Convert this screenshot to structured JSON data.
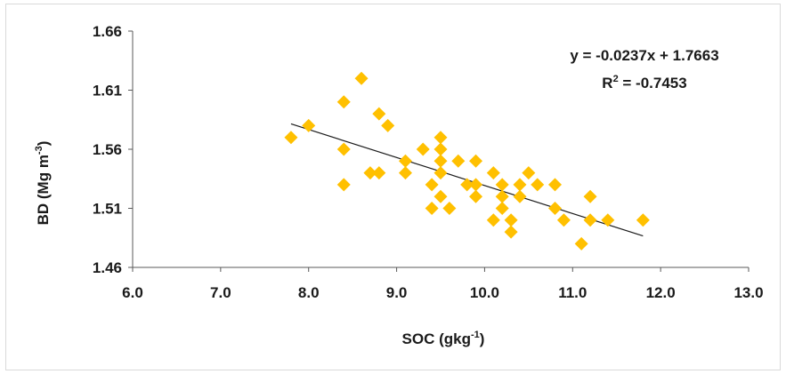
{
  "chart_data": {
    "type": "scatter",
    "title": "",
    "xlabel": "SOC (gkg",
    "xlabel_sup": "-1",
    "xlabel_end": ")",
    "ylabel": "BD (Mg m",
    "ylabel_sup": "-3",
    "ylabel_end": ")",
    "xlim": [
      6.0,
      13.0
    ],
    "ylim": [
      1.46,
      1.66
    ],
    "x_ticks": [
      "6.0",
      "7.0",
      "8.0",
      "9.0",
      "10.0",
      "11.0",
      "12.0",
      "13.0"
    ],
    "y_ticks": [
      "1.46",
      "1.51",
      "1.56",
      "1.61",
      "1.66"
    ],
    "grid": false,
    "marker": "diamond",
    "marker_color": "#FFC000",
    "trendline": {
      "slope": -0.0237,
      "intercept": 1.7663,
      "x_range": [
        7.8,
        11.8
      ],
      "color": "#1a1a1a"
    },
    "equation_text": "y = -0.0237x + 1.7663",
    "r2_label": "R",
    "r2_sup": "2",
    "r2_value": " = -0.7453",
    "points": [
      [
        7.8,
        1.57
      ],
      [
        8.0,
        1.58
      ],
      [
        8.4,
        1.6
      ],
      [
        8.4,
        1.56
      ],
      [
        8.4,
        1.53
      ],
      [
        8.6,
        1.62
      ],
      [
        8.7,
        1.54
      ],
      [
        8.8,
        1.59
      ],
      [
        8.8,
        1.54
      ],
      [
        8.9,
        1.58
      ],
      [
        9.1,
        1.55
      ],
      [
        9.1,
        1.54
      ],
      [
        9.3,
        1.56
      ],
      [
        9.4,
        1.53
      ],
      [
        9.4,
        1.51
      ],
      [
        9.5,
        1.57
      ],
      [
        9.5,
        1.56
      ],
      [
        9.5,
        1.55
      ],
      [
        9.5,
        1.54
      ],
      [
        9.5,
        1.52
      ],
      [
        9.6,
        1.51
      ],
      [
        9.7,
        1.55
      ],
      [
        9.8,
        1.53
      ],
      [
        9.9,
        1.55
      ],
      [
        9.9,
        1.53
      ],
      [
        9.9,
        1.52
      ],
      [
        10.1,
        1.54
      ],
      [
        10.1,
        1.5
      ],
      [
        10.2,
        1.53
      ],
      [
        10.2,
        1.52
      ],
      [
        10.2,
        1.51
      ],
      [
        10.3,
        1.5
      ],
      [
        10.3,
        1.49
      ],
      [
        10.4,
        1.53
      ],
      [
        10.4,
        1.52
      ],
      [
        10.5,
        1.54
      ],
      [
        10.6,
        1.53
      ],
      [
        10.8,
        1.53
      ],
      [
        10.8,
        1.51
      ],
      [
        10.9,
        1.5
      ],
      [
        11.1,
        1.48
      ],
      [
        11.2,
        1.52
      ],
      [
        11.2,
        1.5
      ],
      [
        11.4,
        1.5
      ],
      [
        11.8,
        1.5
      ]
    ]
  }
}
